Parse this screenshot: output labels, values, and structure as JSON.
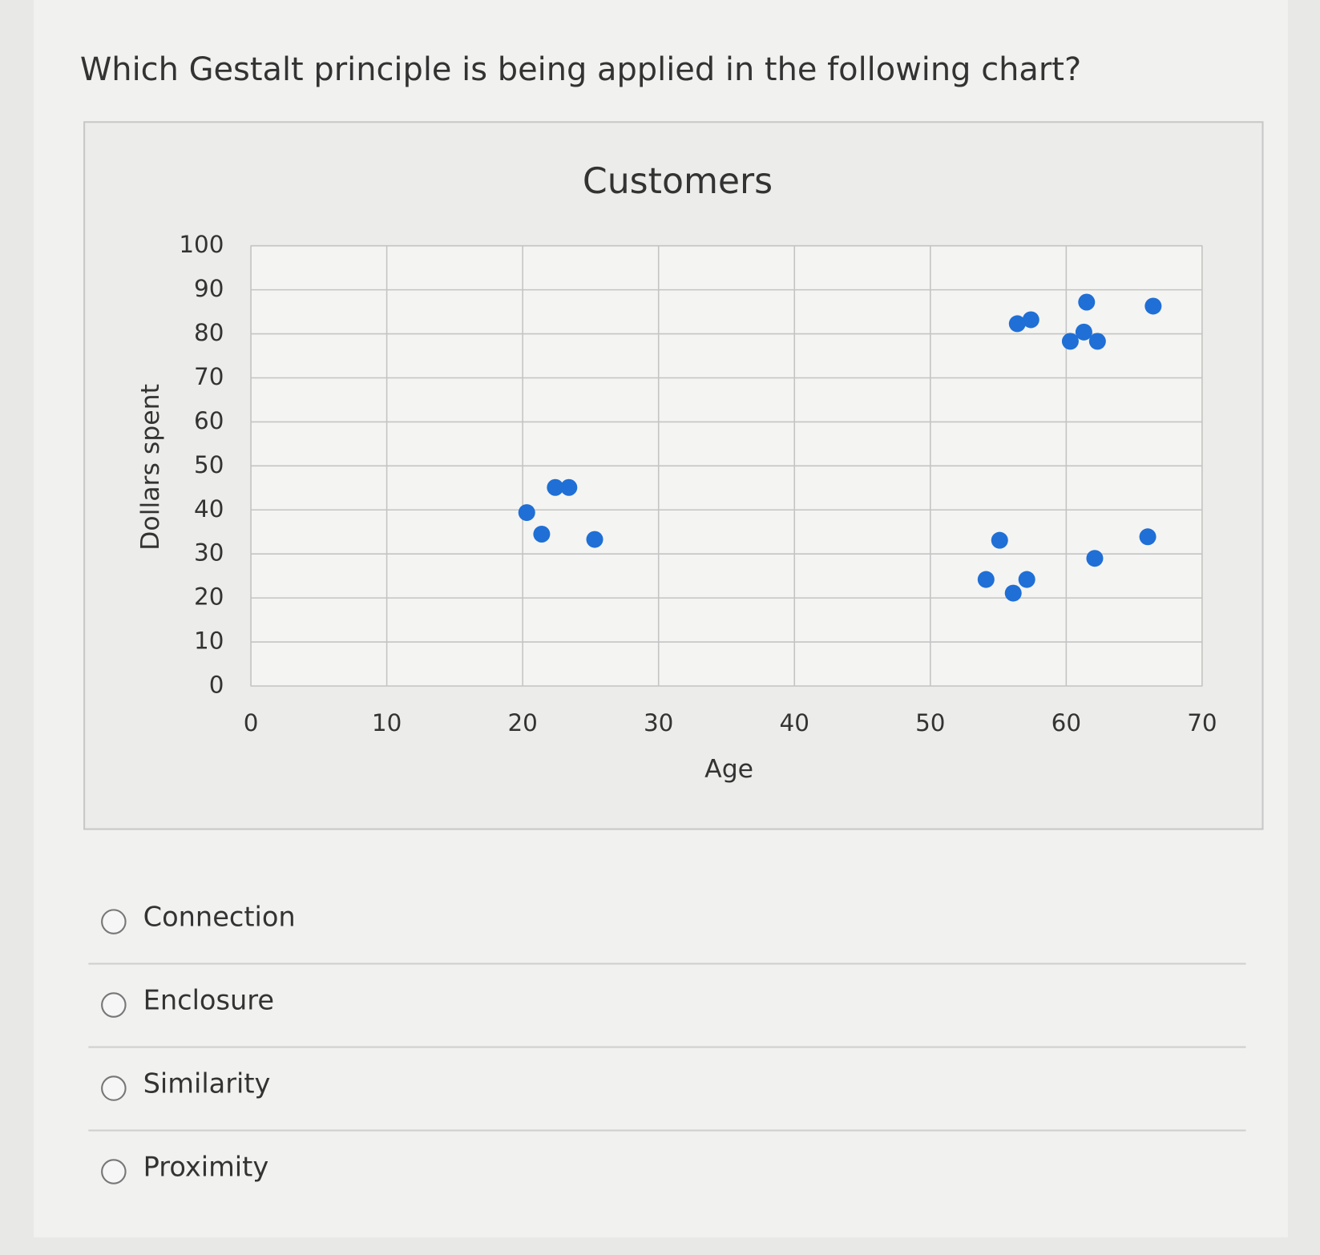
{
  "question": "Which Gestalt principle is being applied in the following chart?",
  "chart_data": {
    "type": "scatter",
    "title": "Customers",
    "x_label": "Age",
    "y_label": "Dollars spent",
    "x": [
      20.3,
      21.4,
      22.4,
      23.4,
      25.3,
      56.4,
      57.4,
      61.5,
      66.4,
      60.3,
      61.3,
      62.3,
      55.1,
      54.1,
      56.1,
      57.1,
      62.1,
      66.0
    ],
    "values": [
      39.4,
      34.5,
      45.1,
      45.1,
      33.3,
      82.3,
      83.2,
      87.2,
      86.3,
      78.3,
      80.4,
      78.3,
      33.1,
      24.2,
      21.1,
      24.2,
      29.0,
      33.9
    ],
    "color": "#1f6fd6",
    "xlim": [
      0,
      70
    ],
    "xticks": [
      0,
      10,
      20,
      30,
      40,
      50,
      60,
      70
    ],
    "ylim": [
      0,
      100
    ],
    "yticks": [
      0,
      10,
      20,
      30,
      40,
      50,
      60,
      70,
      80,
      90,
      100
    ],
    "grid": true
  },
  "options": [
    "Connection",
    "Enclosure",
    "Similarity",
    "Proximity"
  ]
}
